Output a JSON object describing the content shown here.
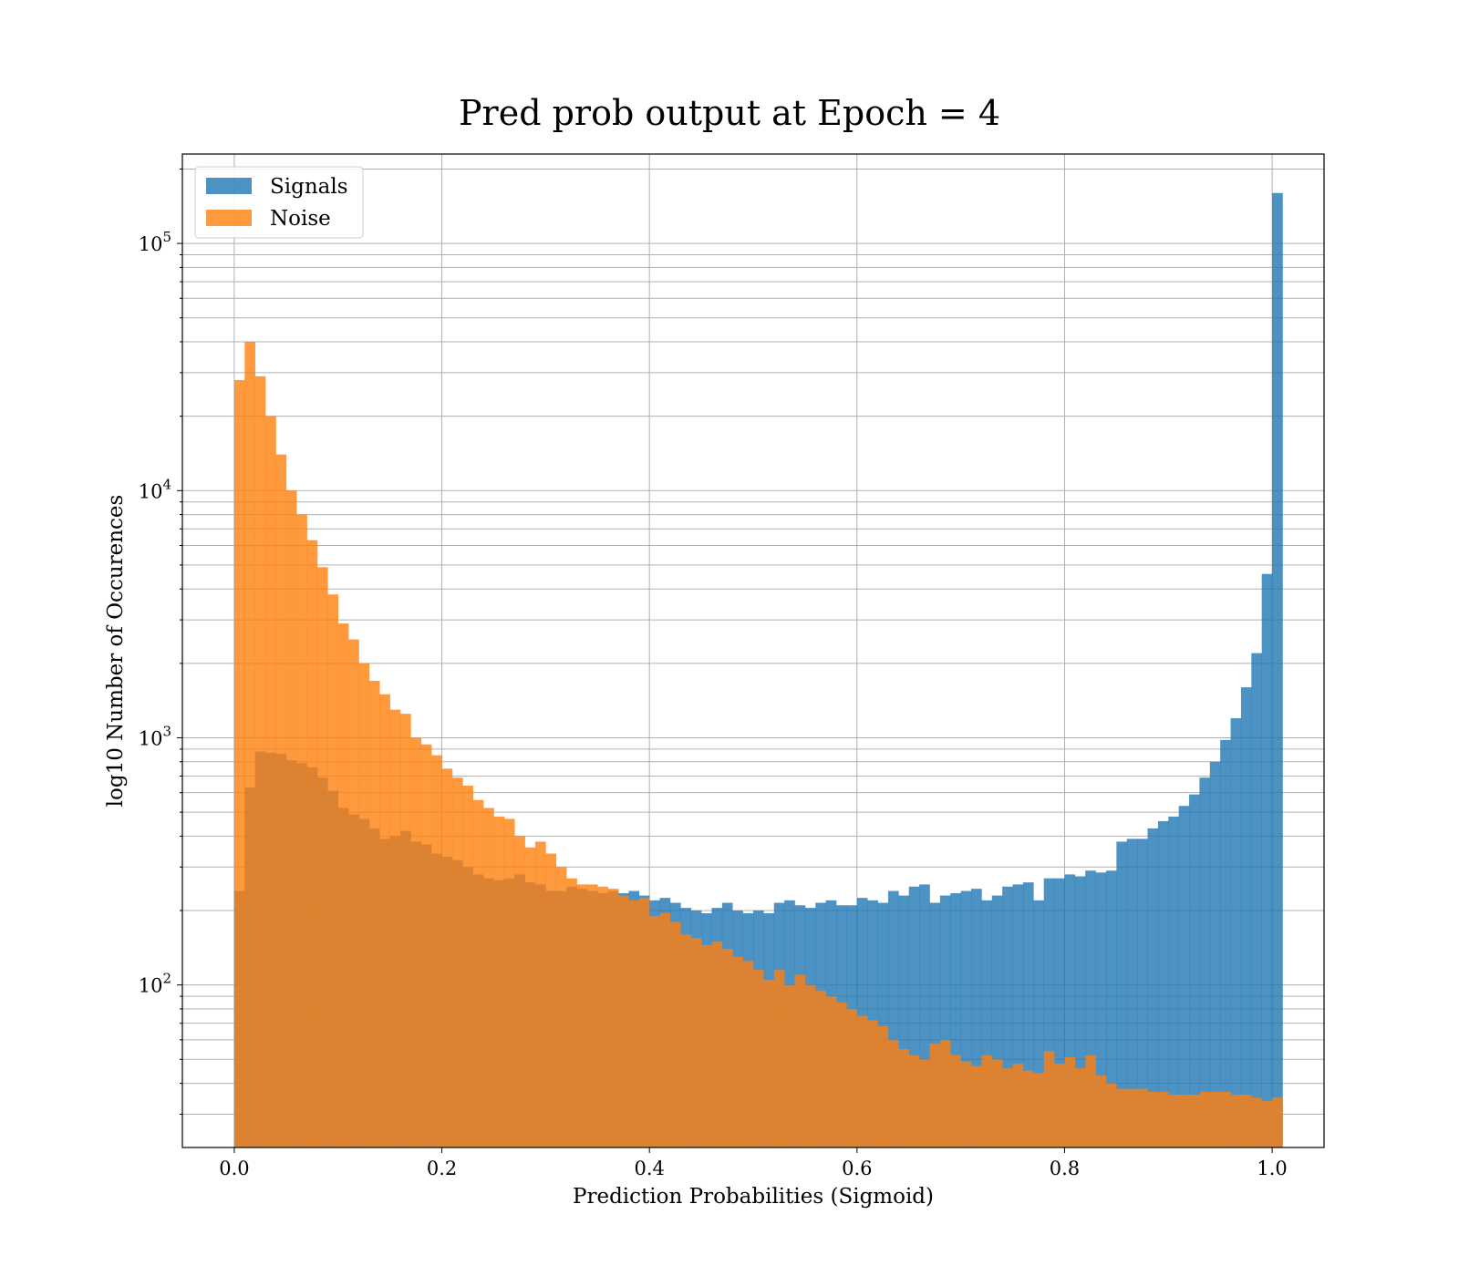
{
  "chart_data": {
    "type": "bar",
    "title": "Pred prob output at Epoch = 4",
    "xlabel": "Prediction Probabilities (Sigmoid)",
    "ylabel": "log10 Number of Occurences",
    "xlim": [
      -0.05,
      1.05
    ],
    "ylim": [
      22,
      230000
    ],
    "yscale": "log",
    "grid": true,
    "legend": "top-left",
    "x_ticks": [
      "0.0",
      "0.2",
      "0.4",
      "0.6",
      "0.8",
      "1.0"
    ],
    "y_ticks": [
      {
        "base": "10",
        "exp": "2"
      },
      {
        "base": "10",
        "exp": "3"
      },
      {
        "base": "10",
        "exp": "4"
      },
      {
        "base": "10",
        "exp": "5"
      }
    ],
    "bin_start": 0.0,
    "bin_width": 0.01,
    "series": [
      {
        "name": "Signals",
        "color": "#1f77b4",
        "values": [
          240,
          630,
          880,
          870,
          860,
          810,
          790,
          760,
          690,
          610,
          520,
          490,
          470,
          430,
          390,
          400,
          420,
          380,
          370,
          340,
          330,
          320,
          300,
          280,
          270,
          265,
          270,
          280,
          260,
          255,
          240,
          240,
          250,
          245,
          240,
          235,
          240,
          235,
          240,
          230,
          220,
          225,
          215,
          205,
          200,
          195,
          205,
          215,
          200,
          195,
          200,
          195,
          215,
          220,
          210,
          205,
          215,
          220,
          210,
          210,
          225,
          220,
          215,
          240,
          230,
          250,
          255,
          215,
          230,
          235,
          240,
          245,
          220,
          230,
          250,
          255,
          260,
          220,
          270,
          270,
          280,
          275,
          290,
          285,
          290,
          380,
          390,
          390,
          430,
          460,
          480,
          530,
          590,
          690,
          800,
          980,
          1200,
          1600,
          2200,
          4600,
          160000
        ]
      },
      {
        "name": "Noise",
        "color": "#ff7f0e",
        "values": [
          28000,
          40000,
          29000,
          20000,
          14000,
          10000,
          8000,
          6300,
          4900,
          3800,
          2900,
          2500,
          2000,
          1700,
          1500,
          1300,
          1250,
          1000,
          940,
          850,
          750,
          690,
          640,
          560,
          520,
          480,
          470,
          400,
          360,
          380,
          340,
          300,
          270,
          255,
          255,
          250,
          245,
          230,
          220,
          225,
          190,
          195,
          180,
          160,
          155,
          145,
          150,
          140,
          130,
          125,
          115,
          105,
          115,
          100,
          110,
          100,
          95,
          90,
          85,
          80,
          75,
          72,
          68,
          60,
          55,
          52,
          50,
          58,
          60,
          52,
          49,
          47,
          52,
          50,
          46,
          48,
          45,
          44,
          54,
          48,
          51,
          46,
          52,
          43,
          40,
          38,
          38,
          38,
          37,
          37,
          36,
          36,
          36,
          37,
          37,
          37,
          36,
          36,
          35,
          34,
          35
        ]
      }
    ]
  }
}
